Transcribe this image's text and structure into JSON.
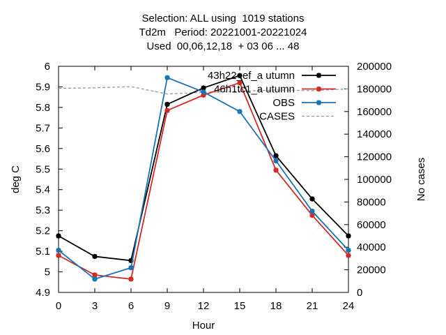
{
  "title_lines": [
    "Selection: ALL using  1019 stations",
    "Td2m   Period: 20221001-20221024",
    "Used  00,06,12,18  + 03 06 ... 48"
  ],
  "chart_data": {
    "type": "line",
    "xlabel": "Hour",
    "ylabel": "deg C",
    "y2label": "No cases",
    "x": [
      0,
      3,
      6,
      9,
      12,
      15,
      18,
      21,
      24
    ],
    "xlim": [
      0,
      24
    ],
    "ylim": [
      4.9,
      6.0
    ],
    "y2lim": [
      0,
      200000
    ],
    "x_ticks": [
      "0",
      "3",
      "6",
      "9",
      "12",
      "15",
      "18",
      "21",
      "24"
    ],
    "y_ticks": [
      "4.9",
      "5",
      "5.1",
      "5.2",
      "5.3",
      "5.4",
      "5.5",
      "5.6",
      "5.7",
      "5.8",
      "5.9",
      "6"
    ],
    "y2_ticks": [
      "0",
      "20000",
      "40000",
      "60000",
      "80000",
      "100000",
      "120000",
      "140000",
      "160000",
      "180000",
      "200000"
    ],
    "grid": false,
    "legend_position": "top-right",
    "series": [
      {
        "name": "43h22_ef_a utumn",
        "axis": "left",
        "color": "#000000",
        "dash": "solid",
        "values": [
          5.175,
          5.075,
          5.055,
          5.815,
          5.895,
          5.955,
          5.565,
          5.355,
          5.175
        ]
      },
      {
        "name": "46h1tc1_a utumn",
        "axis": "left",
        "color": "#d42a24",
        "dash": "solid",
        "values": [
          5.08,
          4.985,
          4.965,
          5.785,
          5.86,
          5.92,
          5.495,
          5.275,
          5.08
        ]
      },
      {
        "name": "OBS",
        "axis": "left",
        "color": "#1a73b4",
        "dash": "solid",
        "values": [
          5.105,
          4.965,
          5.02,
          5.945,
          5.875,
          5.78,
          5.54,
          5.295,
          5.105
        ]
      },
      {
        "name": "CASES",
        "axis": "right",
        "color": "#999999",
        "dash": "dashed",
        "values": [
          180500,
          181000,
          182000,
          175500,
          177000,
          178000,
          179000,
          178500,
          180000
        ]
      }
    ]
  }
}
